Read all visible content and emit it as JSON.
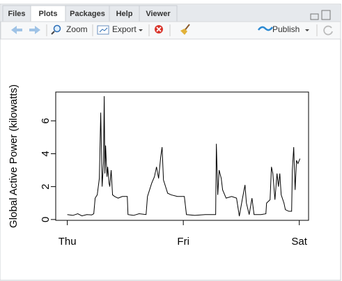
{
  "tabs": [
    "Files",
    "Plots",
    "Packages",
    "Help",
    "Viewer"
  ],
  "toolbar": {
    "zoom": "Zoom",
    "export": "Export",
    "publish": "Publish"
  },
  "chart_data": {
    "type": "line",
    "ylabel": "Global Active Power (kilowatts)",
    "color": "#000000",
    "x": [
      0,
      0.048,
      0.09,
      0.126,
      0.168,
      0.21,
      0.228,
      0.24,
      0.258,
      0.276,
      0.288,
      0.3,
      0.312,
      0.318,
      0.324,
      0.33,
      0.342,
      0.348,
      0.36,
      0.366,
      0.378,
      0.39,
      0.408,
      0.438,
      0.474,
      0.517,
      0.523,
      0.571,
      0.619,
      0.679,
      0.691,
      0.727,
      0.751,
      0.769,
      0.787,
      0.805,
      0.817,
      0.829,
      0.847,
      0.865,
      0.895,
      0.949,
      1.009,
      1.027,
      1.099,
      1.189,
      1.279,
      1.285,
      1.297,
      1.309,
      1.327,
      1.339,
      1.369,
      1.417,
      1.459,
      1.483,
      1.508,
      1.532,
      1.544,
      1.568,
      1.592,
      1.61,
      1.67,
      1.712,
      1.718,
      1.748,
      1.76,
      1.772,
      1.79,
      1.808,
      1.82,
      1.832,
      1.844,
      1.868,
      1.88,
      1.91,
      1.934,
      1.94,
      1.952,
      1.964,
      1.976,
      1.988,
      2.006
    ],
    "values": [
      0.3,
      0.25,
      0.35,
      0.22,
      0.3,
      0.28,
      0.35,
      1.3,
      1.5,
      2.5,
      6.5,
      2.0,
      3.5,
      7.5,
      2.8,
      4.5,
      2.6,
      3.2,
      2.2,
      2.0,
      3.0,
      1.5,
      1.4,
      1.3,
      1.4,
      1.4,
      0.3,
      0.25,
      0.35,
      0.3,
      1.4,
      2.2,
      2.6,
      3.2,
      2.5,
      3.8,
      4.4,
      2.4,
      2.0,
      1.6,
      1.5,
      1.4,
      1.4,
      0.3,
      0.25,
      0.3,
      0.3,
      4.6,
      1.5,
      3.0,
      2.5,
      1.8,
      1.3,
      1.4,
      1.3,
      0.2,
      1.2,
      2.1,
      1.0,
      0.3,
      1.3,
      0.3,
      0.3,
      0.35,
      1.0,
      1.2,
      3.2,
      2.8,
      1.2,
      2.8,
      2.0,
      2.8,
      1.5,
      1.0,
      0.6,
      0.5,
      0.5,
      3.0,
      4.4,
      1.8,
      3.6,
      3.4,
      3.7
    ],
    "xlim": [
      -0.1,
      2.08
    ],
    "ylim": [
      -0.05,
      7.75
    ],
    "xticks": [
      {
        "value": 0,
        "label": "Thu"
      },
      {
        "value": 1,
        "label": "Fri"
      },
      {
        "value": 2,
        "label": "Sat"
      }
    ],
    "yticks": [
      0,
      2,
      4,
      6
    ]
  }
}
